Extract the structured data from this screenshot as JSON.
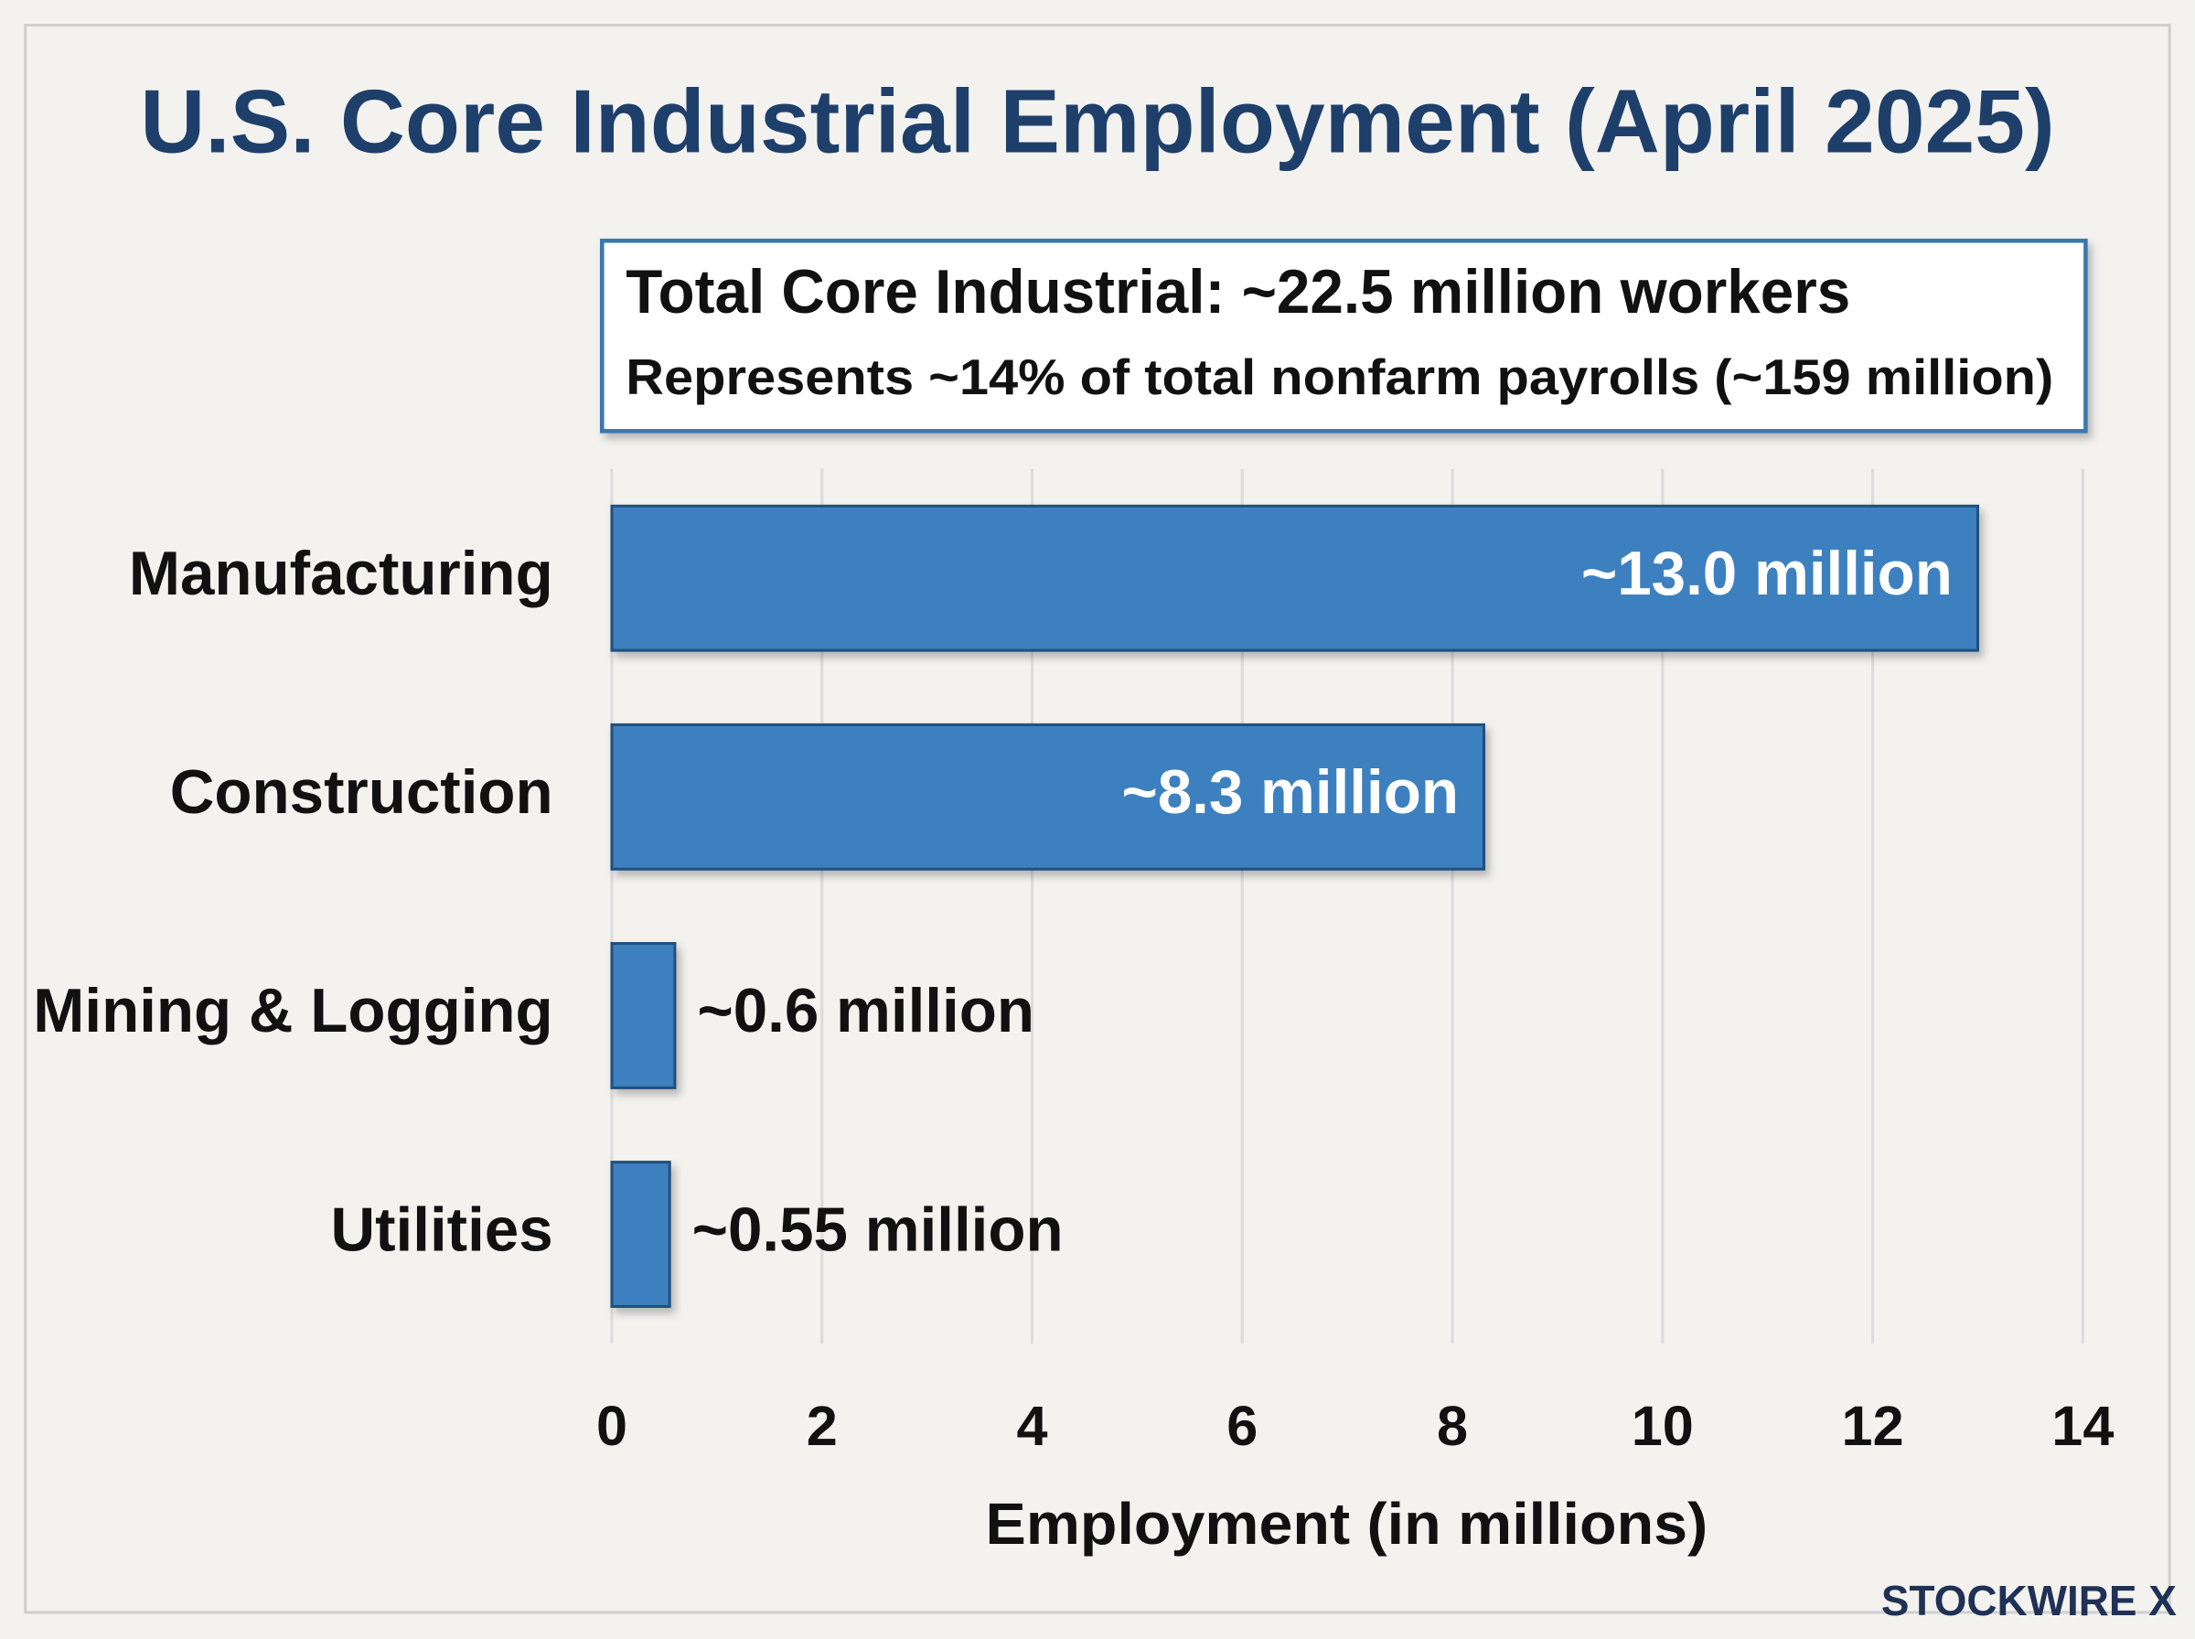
{
  "chart_data": {
    "type": "barh",
    "title": "U.S. Core Industrial Employment (April 2025)",
    "annotation": [
      "Total Core Industrial: ~22.5 million workers",
      "Represents ~14% of total nonfarm payrolls (~159 million)"
    ],
    "categories": [
      "Manufacturing",
      "Construction",
      "Mining & Logging",
      "Utilities"
    ],
    "values": [
      13.0,
      8.3,
      0.6,
      0.55
    ],
    "value_labels": [
      "~13.0 million",
      "~8.3 million",
      "~0.6 million",
      "~0.55 million"
    ],
    "color": "#3d80bf",
    "xlabel": "Employment (in millions)",
    "xlim": [
      0,
      14
    ],
    "xticks": [
      0,
      2,
      4,
      6,
      8,
      10,
      12,
      14
    ],
    "grid": true,
    "watermark": "STOCKWIRE X"
  }
}
